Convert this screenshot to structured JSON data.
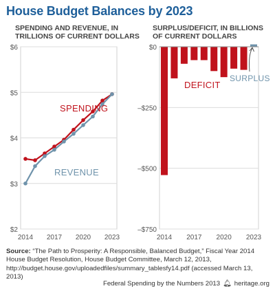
{
  "page": {
    "title": "House Budget Balances by 2023",
    "source_label": "Source:",
    "source_text": "“The Path to Prosperity: A Responsible, Balanced Budget,” Fiscal Year 2014 House Budget Resolution, House Budget Committee, March 12, 2013, http://budget.house.gov/uploadedfiles/summary_tablesfy14.pdf (accessed March 13, 2013)",
    "footer_text": "Federal Spending by the Numbers 2013",
    "footer_site": "heritage.org",
    "footer_icon": "bell-icon"
  },
  "colors": {
    "spending": "#c0121c",
    "revenue": "#6f93ab",
    "deficit": "#c0121c",
    "surplus": "#6f93ab",
    "title": "#1e5f9a"
  },
  "chart_data": [
    {
      "type": "line",
      "subtitle_line1": "SPENDING AND REVENUE, IN",
      "subtitle_line2": "TRILLIONS OF CURRENT DOLLARS",
      "x": [
        2014,
        2015,
        2016,
        2017,
        2018,
        2019,
        2020,
        2021,
        2022,
        2023
      ],
      "x_ticks": [
        "2014",
        "2017",
        "2020",
        "2023"
      ],
      "y_ticks": [
        "$6",
        "$5",
        "$4",
        "$3",
        "$2"
      ],
      "ylim": [
        2,
        6
      ],
      "series": [
        {
          "name": "SPENDING",
          "values": [
            3.54,
            3.51,
            3.66,
            3.81,
            3.96,
            4.18,
            4.39,
            4.58,
            4.82,
            4.96
          ]
        },
        {
          "name": "REVENUE",
          "values": [
            3.0,
            3.38,
            3.6,
            3.74,
            3.92,
            4.09,
            4.28,
            4.47,
            4.74,
            4.96
          ]
        }
      ]
    },
    {
      "type": "bar",
      "subtitle_line1": "SURPLUS/DEFICIT, IN BILLIONS",
      "subtitle_line2": "OF CURRENT DOLLARS",
      "categories": [
        2014,
        2015,
        2016,
        2017,
        2018,
        2019,
        2020,
        2021,
        2022,
        2023
      ],
      "x_ticks": [
        "2014",
        "2017",
        "2020",
        "2023"
      ],
      "y_ticks": [
        "$0",
        "–$250",
        "–$500",
        "–$750"
      ],
      "ylim": [
        -750,
        0
      ],
      "values": [
        -528,
        -130,
        -70,
        -55,
        -55,
        -100,
        -125,
        -90,
        -95,
        7
      ],
      "labels": {
        "deficit": "DEFICIT",
        "surplus": "SURPLUS"
      }
    }
  ]
}
